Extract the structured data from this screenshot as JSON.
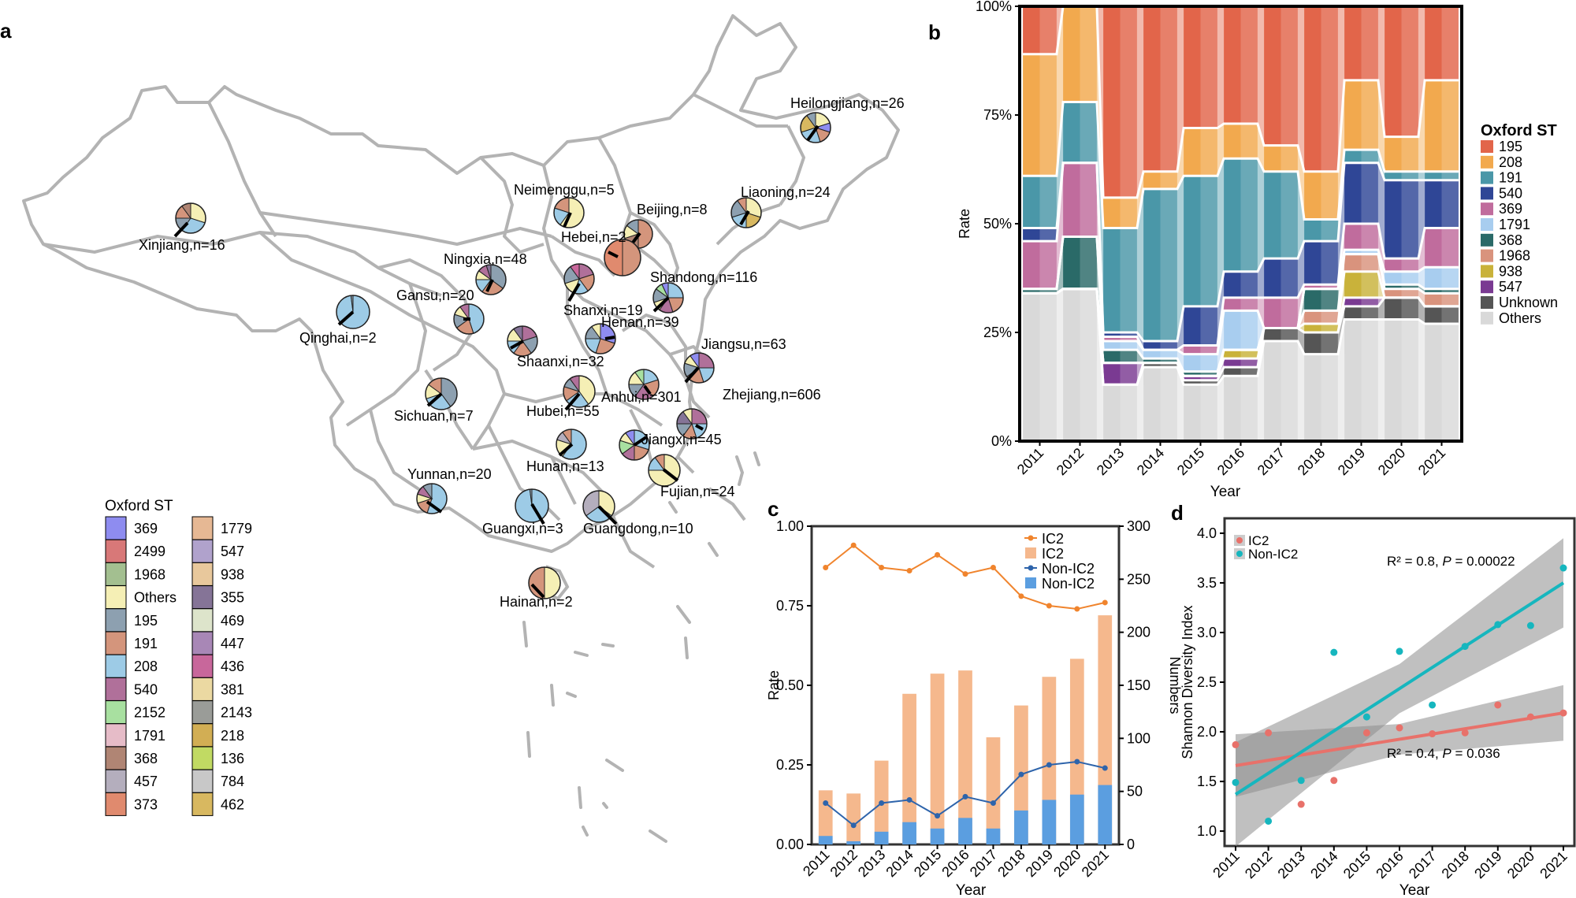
{
  "panel_labels": {
    "a": "a",
    "b": "b",
    "c": "c",
    "d": "d"
  },
  "map": {
    "legend_title": "Oxford ST",
    "legend_left": [
      {
        "st": "369",
        "color": "#8e8cf0"
      },
      {
        "st": "2499",
        "color": "#d87878"
      },
      {
        "st": "1968",
        "color": "#a3bf90"
      },
      {
        "st": "Others",
        "color": "#f5efb5"
      },
      {
        "st": "195",
        "color": "#8da0b0"
      },
      {
        "st": "191",
        "color": "#d4957c"
      },
      {
        "st": "208",
        "color": "#9dcbe6"
      },
      {
        "st": "540",
        "color": "#b0709a"
      },
      {
        "st": "2152",
        "color": "#a8e0a0"
      },
      {
        "st": "1791",
        "color": "#e6bcc8"
      },
      {
        "st": "368",
        "color": "#b08574"
      },
      {
        "st": "457",
        "color": "#b4aebd"
      },
      {
        "st": "373",
        "color": "#e08a6e"
      }
    ],
    "legend_right": [
      {
        "st": "1779",
        "color": "#e6b894"
      },
      {
        "st": "547",
        "color": "#b0a2cc"
      },
      {
        "st": "938",
        "color": "#e8c89c"
      },
      {
        "st": "355",
        "color": "#857497"
      },
      {
        "st": "469",
        "color": "#dde4cb"
      },
      {
        "st": "447",
        "color": "#a887b6"
      },
      {
        "st": "436",
        "color": "#c8679b"
      },
      {
        "st": "381",
        "color": "#ebd9a2"
      },
      {
        "st": "2143",
        "color": "#9a9c98"
      },
      {
        "st": "218",
        "color": "#d2ae54"
      },
      {
        "st": "136",
        "color": "#c1da63"
      },
      {
        "st": "784",
        "color": "#c8c8c8"
      },
      {
        "st": "462",
        "color": "#d8b860"
      }
    ],
    "provinces": [
      {
        "label": "Heilongjiang,n=26",
        "colors": [
          "#f5efb5",
          "#8e8cf0",
          "#d4957c",
          "#9dcbe6",
          "#d8b860",
          "#8da0b0"
        ],
        "weights": [
          20,
          10,
          15,
          25,
          20,
          10
        ]
      },
      {
        "label": "Liaoning,n=24",
        "colors": [
          "#f5efb5",
          "#d8b860",
          "#9dcbe6",
          "#8da0b0",
          "#d4957c"
        ],
        "weights": [
          30,
          20,
          20,
          20,
          10
        ]
      },
      {
        "label": "Neimenggu,n=5",
        "colors": [
          "#f5efb5",
          "#9dcbe6",
          "#d4957c"
        ],
        "weights": [
          60,
          20,
          20
        ]
      },
      {
        "label": "Beijing,n=8",
        "colors": [
          "#d4957c",
          "#b08574",
          "#f5efb5",
          "#8da0b0"
        ],
        "weights": [
          50,
          20,
          15,
          15
        ]
      },
      {
        "label": "Hebei,n=2",
        "colors": [
          "#d4957c",
          "#e08a6e"
        ],
        "weights": [
          50,
          50
        ]
      },
      {
        "label": "Xinjiang,n=16",
        "colors": [
          "#f5efb5",
          "#9dcbe6",
          "#8da0b0",
          "#d4957c",
          "#b08574"
        ],
        "weights": [
          30,
          30,
          15,
          15,
          10
        ]
      },
      {
        "label": "Ningxia,n=48",
        "colors": [
          "#8da0b0",
          "#d4957c",
          "#9dcbe6",
          "#f5efb5",
          "#b0709a",
          "#857497"
        ],
        "weights": [
          35,
          25,
          15,
          10,
          10,
          5
        ]
      },
      {
        "label": "Shanxi,n=19",
        "colors": [
          "#b0709a",
          "#d4957c",
          "#9dcbe6",
          "#f5efb5",
          "#8da0b0",
          "#c8679b"
        ],
        "weights": [
          20,
          20,
          15,
          15,
          20,
          10
        ]
      },
      {
        "label": "Shandong,n=116",
        "colors": [
          "#9dcbe6",
          "#d4957c",
          "#b0709a",
          "#f5efb5",
          "#8da0b0",
          "#a8e0a0",
          "#8e8cf0"
        ],
        "weights": [
          25,
          20,
          15,
          10,
          15,
          8,
          7
        ]
      },
      {
        "label": "Gansu,n=20",
        "colors": [
          "#9dcbe6",
          "#d4957c",
          "#8da0b0",
          "#f5efb5",
          "#b0709a"
        ],
        "weights": [
          45,
          20,
          15,
          10,
          10
        ]
      },
      {
        "label": "Qinghai,n=2",
        "colors": [
          "#9dcbe6",
          "#8da0b0"
        ],
        "weights": [
          98,
          2
        ]
      },
      {
        "label": "Henan,n=39",
        "colors": [
          "#8e8cf0",
          "#d4957c",
          "#9dcbe6",
          "#8da0b0",
          "#f5efb5"
        ],
        "weights": [
          30,
          25,
          20,
          15,
          10
        ]
      },
      {
        "label": "Shaanxi,n=32",
        "colors": [
          "#b0709a",
          "#8da0b0",
          "#d4957c",
          "#9dcbe6",
          "#f5efb5",
          "#857497"
        ],
        "weights": [
          20,
          20,
          20,
          15,
          15,
          10
        ]
      },
      {
        "label": "Jiangsu,n=63",
        "colors": [
          "#b0709a",
          "#9dcbe6",
          "#d4957c",
          "#8da0b0",
          "#f5efb5",
          "#8e8cf0"
        ],
        "weights": [
          25,
          20,
          20,
          15,
          10,
          10
        ]
      },
      {
        "label": "Anhui,n=301",
        "colors": [
          "#9dcbe6",
          "#d4957c",
          "#b0709a",
          "#8da0b0",
          "#f5efb5",
          "#a8e0a0"
        ],
        "weights": [
          20,
          20,
          20,
          15,
          15,
          10
        ]
      },
      {
        "label": "Zhejiang,n=606",
        "colors": [
          "#b0709a",
          "#9dcbe6",
          "#d4957c",
          "#8da0b0",
          "#857497",
          "#f5efb5"
        ],
        "weights": [
          25,
          20,
          15,
          15,
          15,
          10
        ]
      },
      {
        "label": "Sichuan,n=7",
        "colors": [
          "#8da0b0",
          "#9dcbe6",
          "#f5efb5",
          "#d4957c"
        ],
        "weights": [
          40,
          30,
          15,
          15
        ]
      },
      {
        "label": "Hubei,n=55",
        "colors": [
          "#f5efb5",
          "#9dcbe6",
          "#d4957c",
          "#8da0b0",
          "#b0709a"
        ],
        "weights": [
          40,
          25,
          15,
          10,
          10
        ]
      },
      {
        "label": "Jiangxi,n=45",
        "colors": [
          "#9dcbe6",
          "#d4957c",
          "#b0709a",
          "#a8e0a0",
          "#f5efb5",
          "#8e8cf0"
        ],
        "weights": [
          30,
          20,
          15,
          15,
          10,
          10
        ]
      },
      {
        "label": "Hunan,n=13",
        "colors": [
          "#9dcbe6",
          "#f5efb5",
          "#b4aebd",
          "#d4957c"
        ],
        "weights": [
          60,
          20,
          10,
          10
        ]
      },
      {
        "label": "Fujian,n=24",
        "colors": [
          "#f5efb5",
          "#9dcbe6",
          "#d4957c"
        ],
        "weights": [
          75,
          15,
          10
        ]
      },
      {
        "label": "Yunnan,n=20",
        "colors": [
          "#9dcbe6",
          "#d4957c",
          "#f5efb5",
          "#b0709a",
          "#8da0b0"
        ],
        "weights": [
          55,
          15,
          10,
          10,
          10
        ]
      },
      {
        "label": "Guangxi,n=3",
        "colors": [
          "#9dcbe6",
          "#8da0b0"
        ],
        "weights": [
          98,
          2
        ]
      },
      {
        "label": "Guangdong,n=10",
        "colors": [
          "#f5efb5",
          "#9dcbe6",
          "#b4aebd"
        ],
        "weights": [
          35,
          30,
          35
        ]
      },
      {
        "label": "Hainan,n=2",
        "colors": [
          "#f5efb5",
          "#d4957c"
        ],
        "weights": [
          50,
          50
        ]
      }
    ]
  },
  "chart_data": [
    {
      "panel": "b",
      "type": "bar",
      "stacked": true,
      "xlabel": "Year",
      "ylabel": "Rate",
      "ylim": [
        0,
        1
      ],
      "yticks": [
        "0%",
        "25%",
        "50%",
        "75%",
        "100%"
      ],
      "legend_title": "Oxford ST",
      "legend_position": "right",
      "categories": [
        "2011",
        "2012",
        "2013",
        "2014",
        "2015",
        "2016",
        "2017",
        "2018",
        "2019",
        "2020",
        "2021"
      ],
      "series": [
        {
          "name": "Others",
          "color": "#d9d9d9",
          "values": [
            0.34,
            0.35,
            0.13,
            0.17,
            0.13,
            0.15,
            0.23,
            0.2,
            0.28,
            0.28,
            0.27
          ]
        },
        {
          "name": "Unknown",
          "color": "#555555",
          "values": [
            0.0,
            0.0,
            0.0,
            0.01,
            0.01,
            0.02,
            0.03,
            0.05,
            0.03,
            0.05,
            0.04
          ]
        },
        {
          "name": "547",
          "color": "#7a3a92",
          "values": [
            0.0,
            0.0,
            0.05,
            0.0,
            0.01,
            0.02,
            0.0,
            0.0,
            0.02,
            0.0,
            0.0
          ]
        },
        {
          "name": "938",
          "color": "#c9b23a",
          "values": [
            0.0,
            0.0,
            0.0,
            0.0,
            0.0,
            0.02,
            0.0,
            0.02,
            0.06,
            0.0,
            0.0
          ]
        },
        {
          "name": "1968",
          "color": "#d9937d",
          "values": [
            0.0,
            0.0,
            0.0,
            0.0,
            0.0,
            0.0,
            0.0,
            0.03,
            0.04,
            0.02,
            0.03
          ]
        },
        {
          "name": "368",
          "color": "#2a6a68",
          "values": [
            0.01,
            0.12,
            0.03,
            0.01,
            0.01,
            0.0,
            0.0,
            0.05,
            0.0,
            0.01,
            0.01
          ]
        },
        {
          "name": "1791",
          "color": "#a8cdef",
          "values": [
            0.0,
            0.0,
            0.02,
            0.02,
            0.04,
            0.09,
            0.0,
            0.0,
            0.01,
            0.03,
            0.05
          ]
        },
        {
          "name": "369",
          "color": "#c06c9d",
          "values": [
            0.11,
            0.17,
            0.01,
            0.0,
            0.02,
            0.03,
            0.07,
            0.01,
            0.06,
            0.03,
            0.09
          ]
        },
        {
          "name": "540",
          "color": "#2f4696",
          "values": [
            0.03,
            0.0,
            0.01,
            0.02,
            0.09,
            0.06,
            0.09,
            0.1,
            0.14,
            0.18,
            0.11
          ]
        },
        {
          "name": "191",
          "color": "#4a97a8",
          "values": [
            0.12,
            0.14,
            0.24,
            0.35,
            0.3,
            0.26,
            0.2,
            0.05,
            0.03,
            0.02,
            0.02
          ]
        },
        {
          "name": "208",
          "color": "#f2a94e",
          "values": [
            0.28,
            0.22,
            0.07,
            0.04,
            0.11,
            0.08,
            0.06,
            0.11,
            0.16,
            0.08,
            0.21
          ]
        },
        {
          "name": "195",
          "color": "#e2654a",
          "values": [
            0.11,
            0.0,
            0.44,
            0.38,
            0.28,
            0.27,
            0.32,
            0.38,
            0.17,
            0.3,
            0.17
          ]
        }
      ]
    },
    {
      "panel": "c",
      "type": "bar",
      "xlabel": "Year",
      "ylabel": "Rate",
      "y2label": "Numbers",
      "ylim": [
        0,
        1
      ],
      "y2lim": [
        0,
        300
      ],
      "yticks": [
        "0.00",
        "0.25",
        "0.50",
        "0.75",
        "1.00"
      ],
      "y2ticks": [
        "0",
        "50",
        "100",
        "150",
        "200",
        "250",
        "300"
      ],
      "legend_position": "top-right",
      "categories": [
        "2011",
        "2012",
        "2013",
        "2014",
        "2015",
        "2016",
        "2017",
        "2018",
        "2019",
        "2020",
        "2021"
      ],
      "series": [
        {
          "name": "IC2",
          "kind": "line",
          "axis": "left",
          "color": "#f0842d",
          "values": [
            0.87,
            0.94,
            0.87,
            0.86,
            0.91,
            0.85,
            0.87,
            0.78,
            0.75,
            0.74,
            0.76
          ]
        },
        {
          "name": "IC2",
          "kind": "bar",
          "axis": "right",
          "color": "#f5b88d",
          "values": [
            51,
            48,
            79,
            142,
            161,
            164,
            101,
            131,
            158,
            175,
            216
          ]
        },
        {
          "name": "Non-IC2",
          "kind": "line",
          "axis": "left",
          "color": "#2e64ab",
          "values": [
            0.13,
            0.06,
            0.13,
            0.14,
            0.09,
            0.15,
            0.13,
            0.22,
            0.25,
            0.26,
            0.24
          ]
        },
        {
          "name": "Non-IC2",
          "kind": "bar",
          "axis": "right",
          "color": "#5b9ee0",
          "values": [
            8,
            3,
            12,
            21,
            15,
            25,
            15,
            32,
            42,
            47,
            56
          ]
        }
      ]
    },
    {
      "panel": "d",
      "type": "scatter",
      "xlabel": "Year",
      "ylabel": "Shannon Diversity Index",
      "ylim": [
        0.85,
        4.15
      ],
      "yticks": [
        "1.0",
        "1.5",
        "2.0",
        "2.5",
        "3.0",
        "3.5",
        "4.0"
      ],
      "legend_position": "top-left",
      "x": [
        "2011",
        "2012",
        "2013",
        "2014",
        "2015",
        "2016",
        "2017",
        "2018",
        "2019",
        "2020",
        "2021"
      ],
      "series": [
        {
          "name": "IC2",
          "color": "#e8716a",
          "values": [
            1.87,
            1.99,
            1.27,
            1.51,
            1.99,
            2.04,
            1.98,
            1.99,
            2.27,
            2.15,
            2.19
          ],
          "fit": [
            1.66,
            2.19
          ]
        },
        {
          "name": "Non-IC2",
          "color": "#16b6be",
          "values": [
            1.49,
            1.1,
            1.51,
            2.8,
            2.15,
            2.81,
            2.27,
            2.86,
            3.08,
            3.07,
            3.65
          ],
          "fit": [
            1.37,
            3.5
          ]
        }
      ],
      "annotations": [
        {
          "text": "R² = 0.8,",
          "p_prefix": "P",
          "p_value": " = 0.00022"
        },
        {
          "text": "R² = 0.4,",
          "p_prefix": "P",
          "p_value": " = 0.036"
        }
      ]
    }
  ]
}
